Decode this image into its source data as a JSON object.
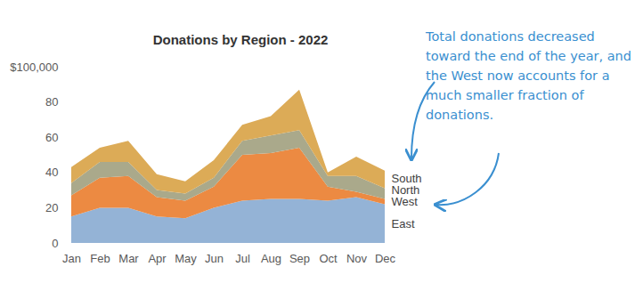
{
  "chart_data": {
    "type": "area",
    "title": "Donations by Region - 2022",
    "annotation": "Total donations decreased toward the end of the year, and the West now accounts for a much smaller fraction of donations.",
    "categories": [
      "Jan",
      "Feb",
      "Mar",
      "Apr",
      "May",
      "Jun",
      "Jul",
      "Aug",
      "Sep",
      "Oct",
      "Nov",
      "Dec"
    ],
    "stacked": true,
    "grid": false,
    "ylim": [
      0,
      100
    ],
    "yticks": [
      0,
      20,
      40,
      60,
      80,
      {
        "value": 100,
        "label": "$100,000"
      }
    ],
    "series": [
      {
        "name": "East",
        "color": "#94b3d6",
        "values": [
          15,
          20,
          20,
          15,
          14,
          20,
          24,
          25,
          25,
          24,
          26,
          22
        ]
      },
      {
        "name": "West",
        "color": "#ec8a42",
        "values": [
          12,
          17,
          18,
          11,
          10,
          12,
          26,
          26,
          29,
          8,
          3,
          3
        ]
      },
      {
        "name": "North",
        "color": "#aaa98b",
        "values": [
          7,
          9,
          8,
          4,
          4,
          5,
          8,
          10,
          10,
          6,
          9,
          6
        ]
      },
      {
        "name": "South",
        "color": "#dcab57",
        "values": [
          9,
          8,
          12,
          9,
          7,
          10,
          9,
          11,
          23,
          2,
          11,
          10
        ]
      }
    ]
  }
}
